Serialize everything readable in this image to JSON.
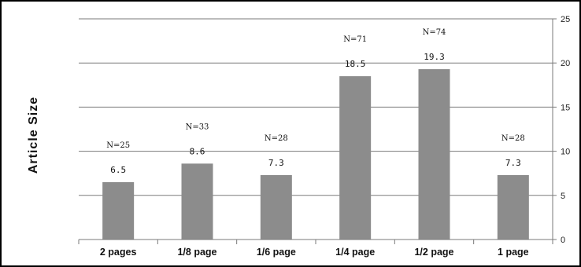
{
  "chart_data": {
    "type": "bar",
    "ylabel": "Article Size",
    "xlabel": "",
    "title": "",
    "categories": [
      "2 pages",
      "1/8 page",
      "1/6 page",
      "1/4 page",
      "1/2 page",
      "1 page"
    ],
    "values": [
      6.5,
      8.6,
      7.3,
      18.5,
      19.3,
      7.3
    ],
    "n_labels": [
      "N=25",
      "N=33",
      "N=28",
      "N=71",
      "N=74",
      "N=28"
    ],
    "value_labels": [
      "6.5",
      "8.6",
      "7.3",
      "18.5",
      "19.3",
      "7.3"
    ],
    "ylim": [
      0,
      25
    ],
    "yticks": [
      "0",
      "5",
      "10",
      "15",
      "20",
      "25"
    ],
    "y_axis_position": "right",
    "grid": true,
    "bar_color": "#8c8c8c"
  }
}
